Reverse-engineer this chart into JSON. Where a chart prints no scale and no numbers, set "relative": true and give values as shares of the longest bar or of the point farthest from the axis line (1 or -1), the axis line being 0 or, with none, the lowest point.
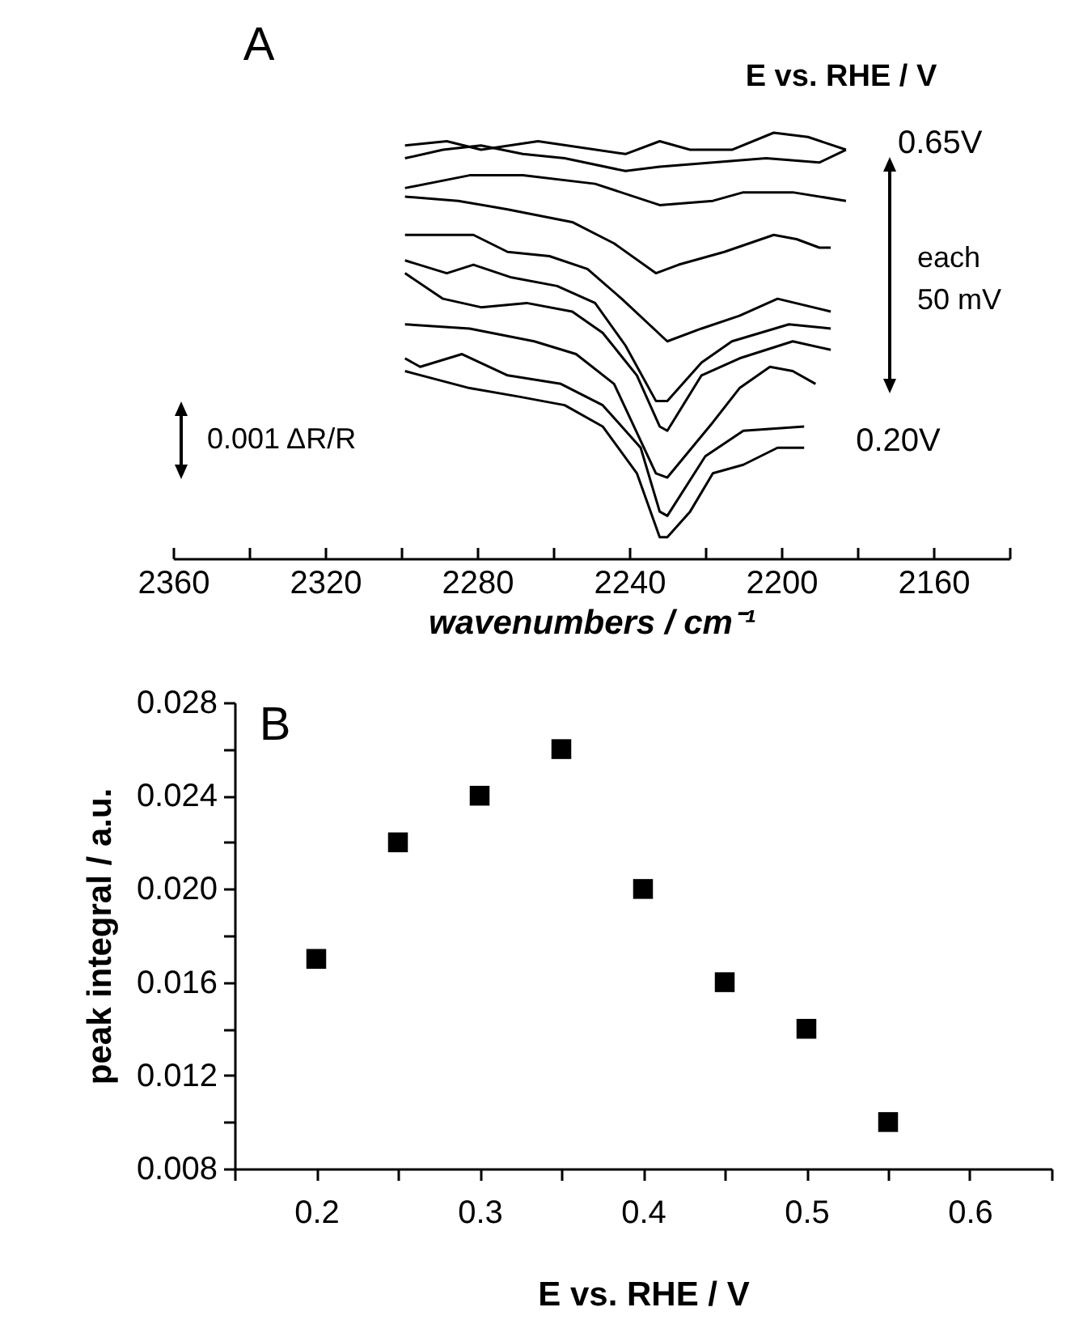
{
  "chart_data": [
    {
      "type": "line",
      "title": "A",
      "xlabel": "wavenumbers / cm⁻¹",
      "legend_title": "E vs. RHE / V",
      "relative": true,
      "annotations": [
        "each 50 mV",
        "0.001 ΔR/R"
      ],
      "xlim": [
        2360,
        2140
      ],
      "xticks": [
        2360,
        {
          "value": 2340,
          "label": null
        },
        2320,
        {
          "value": 2300,
          "label": null
        },
        2280,
        {
          "value": 2260,
          "label": null
        },
        2240,
        {
          "value": 2220,
          "label": null
        },
        2200,
        {
          "value": 2180,
          "label": null
        },
        2160,
        {
          "value": 2140,
          "label": null
        }
      ],
      "series": [
        {
          "name": "0.65V",
          "color": "#000000",
          "x": [
            2299,
            2288,
            2279,
            2264,
            2241,
            2232,
            2224,
            2213,
            2202,
            2193,
            2183
          ],
          "values": [
            0.97,
            0.98,
            0.96,
            0.98,
            0.95,
            0.98,
            0.96,
            0.96,
            1,
            0.99,
            0.96
          ]
        },
        {
          "color": "#000000",
          "x": [
            2299,
            2289,
            2279,
            2268,
            2257,
            2241,
            2232,
            2218,
            2204,
            2190,
            2183
          ],
          "values": [
            0.94,
            0.96,
            0.97,
            0.95,
            0.94,
            0.91,
            0.92,
            0.93,
            0.94,
            0.93,
            0.96
          ]
        },
        {
          "color": "#000000",
          "x": [
            2299,
            2282,
            2268,
            2249,
            2232,
            2218,
            2210,
            2197,
            2183
          ],
          "values": [
            0.87,
            0.9,
            0.9,
            0.88,
            0.83,
            0.84,
            0.86,
            0.86,
            0.84
          ]
        },
        {
          "color": "#000000",
          "x": [
            2299,
            2285,
            2272,
            2255,
            2244,
            2233,
            2227,
            2215,
            2202,
            2196,
            2190,
            2187
          ],
          "values": [
            0.85,
            0.84,
            0.82,
            0.79,
            0.74,
            0.67,
            0.69,
            0.72,
            0.76,
            0.75,
            0.73,
            0.73
          ]
        },
        {
          "color": "#000000",
          "x": [
            2299,
            2281,
            2272,
            2261,
            2251,
            2242,
            2230,
            2221,
            2211,
            2201,
            2187
          ],
          "values": [
            0.76,
            0.76,
            0.72,
            0.71,
            0.68,
            0.61,
            0.51,
            0.54,
            0.57,
            0.61,
            0.58
          ]
        },
        {
          "color": "#000000",
          "x": [
            2299,
            2288,
            2281,
            2271,
            2259,
            2249,
            2241,
            2233,
            2230,
            2221,
            2213,
            2198,
            2187
          ],
          "values": [
            0.7,
            0.67,
            0.69,
            0.66,
            0.64,
            0.6,
            0.5,
            0.37,
            0.37,
            0.46,
            0.51,
            0.55,
            0.54
          ]
        },
        {
          "color": "#000000",
          "x": [
            2299,
            2289,
            2279,
            2267,
            2255,
            2247,
            2238,
            2232,
            2230,
            2221,
            2211,
            2197,
            2187
          ],
          "values": [
            0.67,
            0.61,
            0.59,
            0.6,
            0.58,
            0.53,
            0.43,
            0.31,
            0.3,
            0.43,
            0.47,
            0.51,
            0.49
          ]
        },
        {
          "color": "#000000",
          "x": [
            2299,
            2282,
            2265,
            2254,
            2244,
            2233,
            2230,
            2218,
            2211,
            2203,
            2197,
            2191
          ],
          "values": [
            0.55,
            0.54,
            0.51,
            0.48,
            0.41,
            0.2,
            0.19,
            0.32,
            0.4,
            0.45,
            0.44,
            0.41
          ]
        },
        {
          "color": "#000000",
          "x": [
            2299,
            2295,
            2284,
            2272,
            2258,
            2247,
            2237,
            2232,
            2230,
            2220,
            2210,
            2194
          ],
          "values": [
            0.47,
            0.45,
            0.48,
            0.43,
            0.41,
            0.36,
            0.26,
            0.11,
            0.1,
            0.24,
            0.3,
            0.31
          ]
        },
        {
          "name": "0.20V",
          "color": "#000000",
          "x": [
            2299,
            2282,
            2269,
            2257,
            2247,
            2238,
            2232,
            2230,
            2224,
            2218,
            2210,
            2201,
            2194
          ],
          "values": [
            0.44,
            0.4,
            0.38,
            0.36,
            0.31,
            0.2,
            0.05,
            0.05,
            0.11,
            0.2,
            0.22,
            0.26,
            0.26
          ]
        }
      ]
    },
    {
      "type": "scatter",
      "title": "B",
      "xlabel": "E vs. RHE / V",
      "ylabel": "peak integral / a.u.",
      "marker": "square",
      "color": "#000000",
      "x": [
        0.2,
        0.25,
        0.3,
        0.35,
        0.4,
        0.45,
        0.5,
        0.55
      ],
      "values": [
        0.017,
        0.022,
        0.024,
        0.026,
        0.02,
        0.016,
        0.014,
        0.01
      ],
      "xlim": [
        0.15,
        0.65
      ],
      "xticks": [
        {
          "value": 0.15,
          "label": null
        },
        0.2,
        {
          "value": 0.25,
          "label": null
        },
        0.3,
        {
          "value": 0.35,
          "label": null
        },
        0.4,
        {
          "value": 0.45,
          "label": null
        },
        0.5,
        {
          "value": 0.55,
          "label": null
        },
        0.6,
        {
          "value": 0.65,
          "label": null
        }
      ],
      "ylim": [
        0.008,
        0.028
      ],
      "yticks": [
        0.008,
        {
          "value": 0.01,
          "label": null
        },
        0.012,
        {
          "value": 0.014,
          "label": null
        },
        0.016,
        {
          "value": 0.018,
          "label": null
        },
        {
          "value": 0.02,
          "label": "0.020"
        },
        {
          "value": 0.022,
          "label": null
        },
        0.024,
        {
          "value": 0.026,
          "label": null
        },
        0.028
      ]
    }
  ]
}
